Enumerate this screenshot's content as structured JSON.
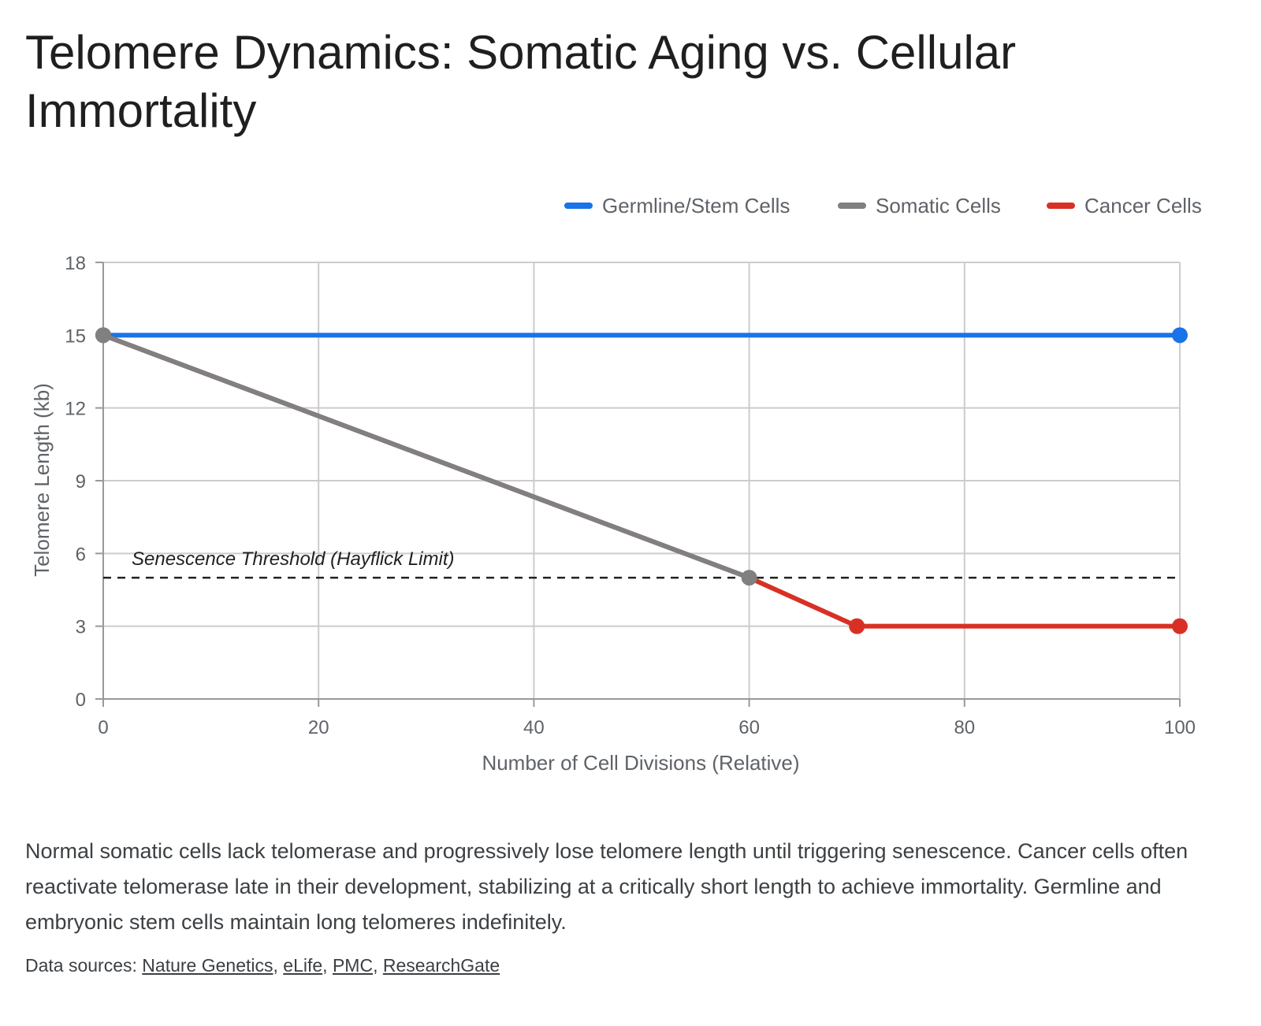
{
  "title": "Telomere Dynamics: Somatic Aging vs. Cellular Immortality",
  "caption": "Normal somatic cells lack telomerase and progressively lose telomere length until triggering senescence. Cancer cells often reactivate telomerase late in their development, stabilizing at a critically short length to achieve immortality. Germline and embryonic stem cells maintain long telomeres indefinitely.",
  "sources": {
    "label": "Data sources:",
    "links": [
      "Nature Genetics",
      "eLife",
      "PMC",
      "ResearchGate"
    ]
  },
  "chart_data": {
    "type": "line",
    "xlabel": "Number of Cell Divisions (Relative)",
    "ylabel": "Telomere Length (kb)",
    "xlim": [
      0,
      100
    ],
    "ylim": [
      0,
      18
    ],
    "xticks": [
      0,
      20,
      40,
      60,
      80,
      100
    ],
    "yticks": [
      0,
      3,
      6,
      9,
      12,
      15,
      18
    ],
    "grid": true,
    "legend_position": "top-right",
    "series": [
      {
        "name": "Germline/Stem Cells",
        "color": "#1a73e8",
        "points": [
          [
            0,
            15
          ],
          [
            100,
            15
          ]
        ]
      },
      {
        "name": "Somatic Cells",
        "color": "#808080",
        "points": [
          [
            0,
            15
          ],
          [
            60,
            5
          ]
        ]
      },
      {
        "name": "Cancer Cells",
        "color": "#d93025",
        "points": [
          [
            0,
            15
          ],
          [
            60,
            5
          ],
          [
            70,
            3
          ],
          [
            100,
            3
          ]
        ],
        "markers": [
          [
            70,
            3
          ],
          [
            100,
            3
          ]
        ]
      }
    ],
    "annotations": [
      {
        "type": "hline",
        "y": 5,
        "style": "dashed",
        "color": "#202124",
        "label": "Senescence Threshold (Hayflick Limit)"
      }
    ]
  }
}
